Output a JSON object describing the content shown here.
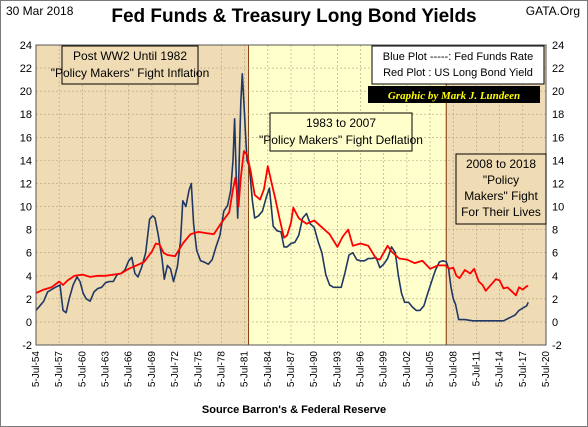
{
  "header": {
    "date": "30 Mar 2018",
    "site": "GATA.Org",
    "title": "Fed Funds & Treasury Long Bond Yields",
    "source": "Source Barron's & Federal Reserve"
  },
  "annotations": {
    "era1": [
      "Post WW2 Until 1982",
      "\"Policy Makers\" Fight Inflation"
    ],
    "era2": [
      "1983 to 2007",
      "\"Policy Makers\" Fight Deflation"
    ],
    "era3": [
      "2008 to 2018",
      "\"Policy",
      "Makers\" Fight",
      "For Their Lives"
    ],
    "legend": [
      "Blue Plot -----: Fed Funds Rate",
      "Red Plot : US Long Bond Yield"
    ],
    "credit": "Graphic by Mark J. Lundeen"
  },
  "colors": {
    "blue_series": "#1f3864",
    "red_series": "#ff0000",
    "era1_bg": "#f0dcb4",
    "era2_bg": "#ffffcc",
    "era3_bg": "#f0dcb4",
    "era_border": "#8b4513",
    "credit_bg": "#000000",
    "credit_text": "#ffff00"
  },
  "chart_data": {
    "type": "line",
    "title": "Fed Funds & Treasury Long Bond Yields",
    "xlabel": "",
    "ylabel": "",
    "xlim": [
      1954.5,
      2020.5
    ],
    "ylim": [
      -2,
      24
    ],
    "yticks": [
      -2,
      0,
      2,
      4,
      6,
      8,
      10,
      12,
      14,
      16,
      18,
      20,
      22,
      24
    ],
    "xticks": [
      {
        "year": 1954.5,
        "label": "5-Jul-54"
      },
      {
        "year": 1957.5,
        "label": "5-Jul-57"
      },
      {
        "year": 1960.5,
        "label": "5-Jul-60"
      },
      {
        "year": 1963.5,
        "label": "5-Jul-63"
      },
      {
        "year": 1966.5,
        "label": "5-Jul-66"
      },
      {
        "year": 1969.5,
        "label": "5-Jul-69"
      },
      {
        "year": 1972.5,
        "label": "5-Jul-72"
      },
      {
        "year": 1975.5,
        "label": "5-Jul-75"
      },
      {
        "year": 1978.5,
        "label": "5-Jul-78"
      },
      {
        "year": 1981.5,
        "label": "5-Jul-81"
      },
      {
        "year": 1984.5,
        "label": "5-Jul-84"
      },
      {
        "year": 1987.5,
        "label": "5-Jul-87"
      },
      {
        "year": 1990.5,
        "label": "5-Jul-90"
      },
      {
        "year": 1993.5,
        "label": "5-Jul-93"
      },
      {
        "year": 1996.5,
        "label": "5-Jul-96"
      },
      {
        "year": 1999.5,
        "label": "5-Jul-99"
      },
      {
        "year": 2002.5,
        "label": "5-Jul-02"
      },
      {
        "year": 2005.5,
        "label": "5-Jul-05"
      },
      {
        "year": 2008.5,
        "label": "5-Jul-08"
      },
      {
        "year": 2011.5,
        "label": "5-Jul-11"
      },
      {
        "year": 2014.5,
        "label": "5-Jul-14"
      },
      {
        "year": 2017.5,
        "label": "5-Jul-17"
      },
      {
        "year": 2020.5,
        "label": "5-Jul-20"
      }
    ],
    "regions": [
      {
        "name": "era1",
        "x0": 1954.5,
        "x1": 1982.0
      },
      {
        "name": "era2",
        "x0": 1982.0,
        "x1": 2007.6
      },
      {
        "name": "era3",
        "x0": 2007.6,
        "x1": 2020.5
      }
    ],
    "grid": true,
    "series": [
      {
        "name": "Fed Funds Rate",
        "color": "#1f3864",
        "x": [
          1954.5,
          1955.0,
          1955.5,
          1956.0,
          1956.5,
          1957.0,
          1957.6,
          1958.0,
          1958.4,
          1958.8,
          1959.3,
          1959.8,
          1960.2,
          1960.6,
          1961.0,
          1961.5,
          1962.0,
          1962.5,
          1963.0,
          1963.5,
          1964.0,
          1964.5,
          1965.0,
          1965.5,
          1966.0,
          1966.5,
          1966.9,
          1967.3,
          1967.7,
          1968.2,
          1968.7,
          1969.2,
          1969.6,
          1969.9,
          1970.3,
          1970.8,
          1971.1,
          1971.5,
          1971.9,
          1972.3,
          1972.8,
          1973.2,
          1973.5,
          1973.9,
          1974.3,
          1974.6,
          1974.9,
          1975.3,
          1975.8,
          1976.2,
          1976.8,
          1977.3,
          1977.8,
          1978.3,
          1978.8,
          1979.3,
          1979.7,
          1980.0,
          1980.2,
          1980.4,
          1980.6,
          1980.8,
          1981.0,
          1981.2,
          1981.4,
          1981.6,
          1981.8,
          1982.1,
          1982.5,
          1982.8,
          1983.3,
          1983.8,
          1984.3,
          1984.7,
          1985.2,
          1985.7,
          1986.2,
          1986.6,
          1987.0,
          1987.5,
          1988.0,
          1988.5,
          1989.0,
          1989.5,
          1990.0,
          1990.5,
          1991.0,
          1991.5,
          1992.0,
          1992.5,
          1993.0,
          1993.5,
          1994.0,
          1994.5,
          1995.0,
          1995.5,
          1996.0,
          1996.5,
          1997.0,
          1997.5,
          1998.0,
          1998.5,
          1999.0,
          1999.5,
          2000.0,
          2000.5,
          2001.0,
          2001.4,
          2001.8,
          2002.2,
          2002.7,
          2003.2,
          2003.7,
          2004.2,
          2004.7,
          2005.2,
          2005.7,
          2006.2,
          2006.7,
          2007.2,
          2007.6,
          2007.9,
          2008.2,
          2008.5,
          2008.8,
          2009.2,
          2010.0,
          2011.0,
          2012.0,
          2013.0,
          2014.0,
          2015.0,
          2015.9,
          2016.5,
          2017.0,
          2017.5,
          2018.0,
          2018.2
        ],
        "y": [
          1.0,
          1.4,
          1.8,
          2.6,
          2.8,
          3.0,
          3.2,
          1.0,
          0.8,
          2.0,
          3.2,
          3.9,
          3.5,
          2.5,
          2.0,
          1.8,
          2.6,
          2.9,
          3.0,
          3.4,
          3.5,
          3.5,
          4.1,
          4.2,
          4.5,
          5.3,
          5.6,
          4.2,
          3.9,
          4.8,
          6.0,
          8.9,
          9.2,
          9.0,
          7.6,
          5.5,
          3.7,
          4.9,
          4.6,
          3.5,
          4.8,
          7.0,
          10.5,
          10.0,
          11.4,
          12.0,
          8.5,
          6.2,
          5.3,
          5.2,
          5.0,
          5.4,
          6.5,
          7.5,
          9.6,
          10.1,
          11.4,
          14.0,
          17.6,
          13.0,
          9.0,
          14.0,
          19.0,
          21.5,
          19.0,
          16.5,
          14.0,
          13.5,
          10.5,
          9.0,
          9.2,
          9.6,
          10.8,
          11.6,
          8.3,
          7.9,
          7.8,
          6.5,
          6.5,
          6.8,
          6.9,
          7.5,
          9.0,
          9.4,
          8.5,
          8.2,
          7.0,
          6.0,
          4.1,
          3.2,
          3.0,
          3.0,
          3.0,
          4.3,
          5.8,
          6.0,
          5.4,
          5.3,
          5.3,
          5.5,
          5.5,
          5.6,
          4.7,
          5.0,
          5.5,
          6.5,
          6.0,
          4.0,
          2.5,
          1.7,
          1.7,
          1.3,
          1.0,
          1.0,
          1.4,
          2.5,
          3.5,
          4.5,
          5.2,
          5.3,
          5.2,
          4.6,
          3.0,
          2.0,
          1.5,
          0.2,
          0.2,
          0.1,
          0.1,
          0.1,
          0.1,
          0.1,
          0.4,
          0.6,
          1.0,
          1.2,
          1.4,
          1.7
        ]
      },
      {
        "name": "US Long Bond Yield",
        "color": "#ff0000",
        "x": [
          1954.5,
          1955.5,
          1956.5,
          1957.5,
          1958.0,
          1958.6,
          1959.5,
          1960.5,
          1961.5,
          1962.5,
          1963.5,
          1964.5,
          1965.5,
          1966.5,
          1967.5,
          1968.5,
          1969.5,
          1970.0,
          1970.5,
          1971.0,
          1971.5,
          1972.5,
          1973.5,
          1974.5,
          1975.5,
          1976.5,
          1977.5,
          1978.5,
          1979.5,
          1980.0,
          1980.3,
          1980.7,
          1981.0,
          1981.4,
          1981.8,
          1982.3,
          1982.8,
          1983.5,
          1984.0,
          1984.5,
          1985.0,
          1985.5,
          1986.0,
          1986.6,
          1987.0,
          1987.5,
          1987.8,
          1988.5,
          1989.5,
          1990.5,
          1991.5,
          1992.5,
          1993.5,
          1994.2,
          1994.9,
          1995.5,
          1996.5,
          1997.5,
          1998.5,
          1999.0,
          1999.5,
          2000.0,
          2000.5,
          2001.5,
          2002.5,
          2003.5,
          2004.5,
          2005.5,
          2006.5,
          2007.5,
          2008.0,
          2008.5,
          2008.9,
          2009.3,
          2010.0,
          2010.7,
          2011.2,
          2011.8,
          2012.3,
          2012.7,
          2013.5,
          2014.0,
          2014.5,
          2015.0,
          2015.5,
          2016.0,
          2016.6,
          2017.0,
          2017.5,
          2018.0,
          2018.2
        ],
        "y": [
          2.5,
          2.8,
          3.0,
          3.5,
          3.2,
          3.6,
          4.0,
          4.1,
          3.9,
          4.0,
          4.0,
          4.1,
          4.2,
          4.6,
          4.9,
          5.2,
          6.1,
          6.8,
          6.7,
          6.0,
          5.8,
          5.7,
          6.8,
          7.6,
          7.8,
          7.7,
          7.6,
          8.6,
          9.5,
          11.5,
          12.5,
          10.0,
          12.5,
          14.8,
          14.5,
          13.0,
          11.0,
          10.6,
          11.5,
          13.5,
          12.0,
          10.6,
          9.0,
          7.3,
          7.5,
          8.6,
          9.9,
          9.0,
          8.5,
          8.8,
          8.2,
          7.6,
          6.5,
          7.4,
          8.0,
          6.6,
          6.8,
          6.6,
          5.5,
          5.4,
          6.0,
          6.6,
          6.1,
          5.5,
          5.4,
          5.1,
          5.3,
          4.6,
          4.9,
          4.9,
          4.6,
          4.7,
          4.0,
          3.8,
          4.5,
          4.2,
          4.6,
          3.5,
          3.2,
          2.7,
          3.3,
          3.7,
          3.6,
          2.9,
          3.0,
          2.7,
          2.3,
          3.0,
          2.8,
          3.1,
          3.1
        ]
      }
    ]
  }
}
